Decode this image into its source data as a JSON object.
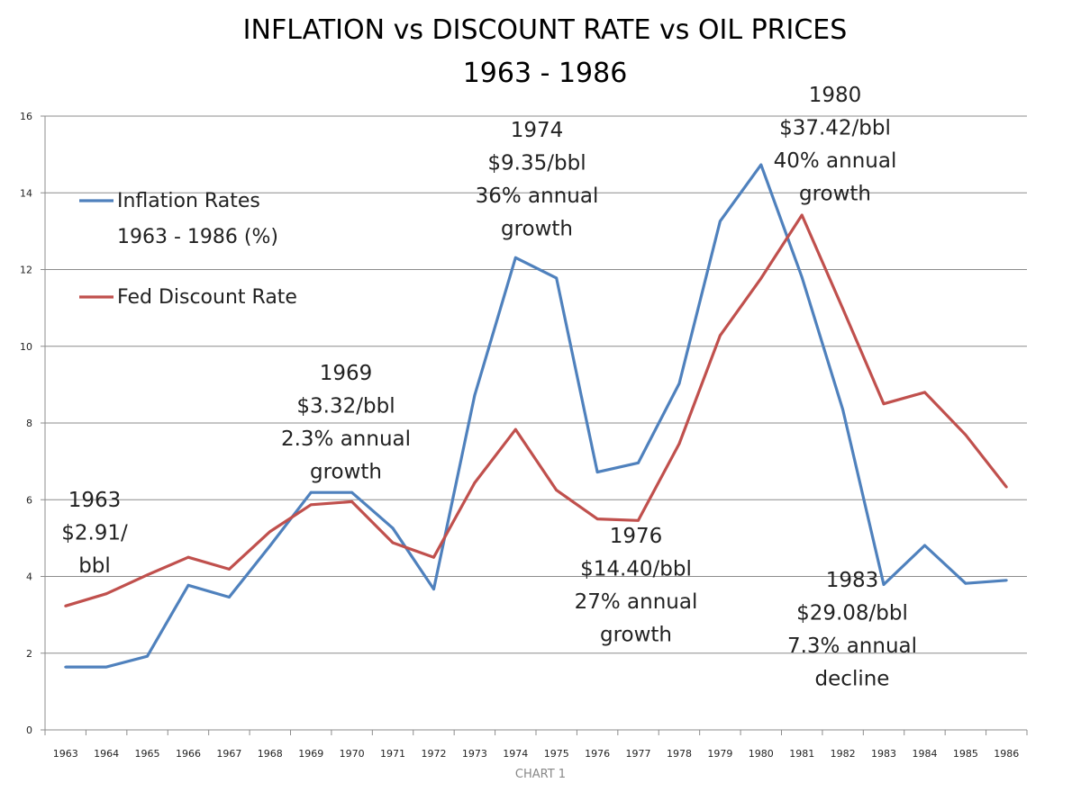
{
  "chart_data": {
    "type": "line",
    "title": [
      "INFLATION  vs  DISCOUNT RATE  vs  OIL PRICES",
      "1963 - 1986"
    ],
    "caption": "CHART 1",
    "xlabel": "",
    "ylabel": "",
    "ylim": [
      0,
      16
    ],
    "yticks": [
      0,
      2,
      4,
      6,
      8,
      10,
      12,
      14,
      16
    ],
    "grid": true,
    "legend_position": "left",
    "categories": [
      "1963",
      "1964",
      "1965",
      "1966",
      "1967",
      "1968",
      "1969",
      "1970",
      "1971",
      "1972",
      "1973",
      "1974",
      "1975",
      "1976",
      "1977",
      "1978",
      "1979",
      "1980",
      "1981",
      "1982",
      "1983",
      "1984",
      "1985",
      "1986"
    ],
    "series": [
      {
        "name": [
          "Inflation Rates",
          "1963 - 1986 (%)"
        ],
        "color": "#4f81bd",
        "values": [
          1.64,
          1.64,
          1.92,
          3.77,
          3.46,
          4.8,
          6.19,
          6.19,
          5.26,
          3.67,
          8.72,
          12.31,
          11.78,
          6.72,
          6.96,
          9.03,
          13.26,
          14.73,
          11.8,
          8.35,
          3.79,
          4.81,
          3.82,
          3.9
        ]
      },
      {
        "name": [
          "Fed Discount Rate"
        ],
        "color": "#c0504d",
        "values": [
          3.23,
          3.55,
          4.04,
          4.5,
          4.19,
          5.17,
          5.87,
          5.95,
          4.88,
          4.5,
          6.44,
          7.83,
          6.25,
          5.5,
          5.46,
          7.46,
          10.28,
          11.77,
          13.42,
          10.98,
          8.5,
          8.8,
          7.69,
          6.33
        ]
      }
    ],
    "annotations": [
      {
        "lines": [
          "1963",
          "$2.91/",
          "bbl"
        ]
      },
      {
        "lines": [
          "1969",
          "$3.32/bbl",
          "2.3% annual",
          "growth"
        ]
      },
      {
        "lines": [
          "1974",
          "$9.35/bbl",
          "36% annual",
          "growth"
        ]
      },
      {
        "lines": [
          "1976",
          "$14.40/bbl",
          "27% annual",
          "growth"
        ]
      },
      {
        "lines": [
          "1980",
          "$37.42/bbl",
          "40% annual",
          "growth"
        ]
      },
      {
        "lines": [
          "1983",
          "$29.08/bbl",
          "7.3% annual",
          "decline"
        ]
      }
    ]
  }
}
